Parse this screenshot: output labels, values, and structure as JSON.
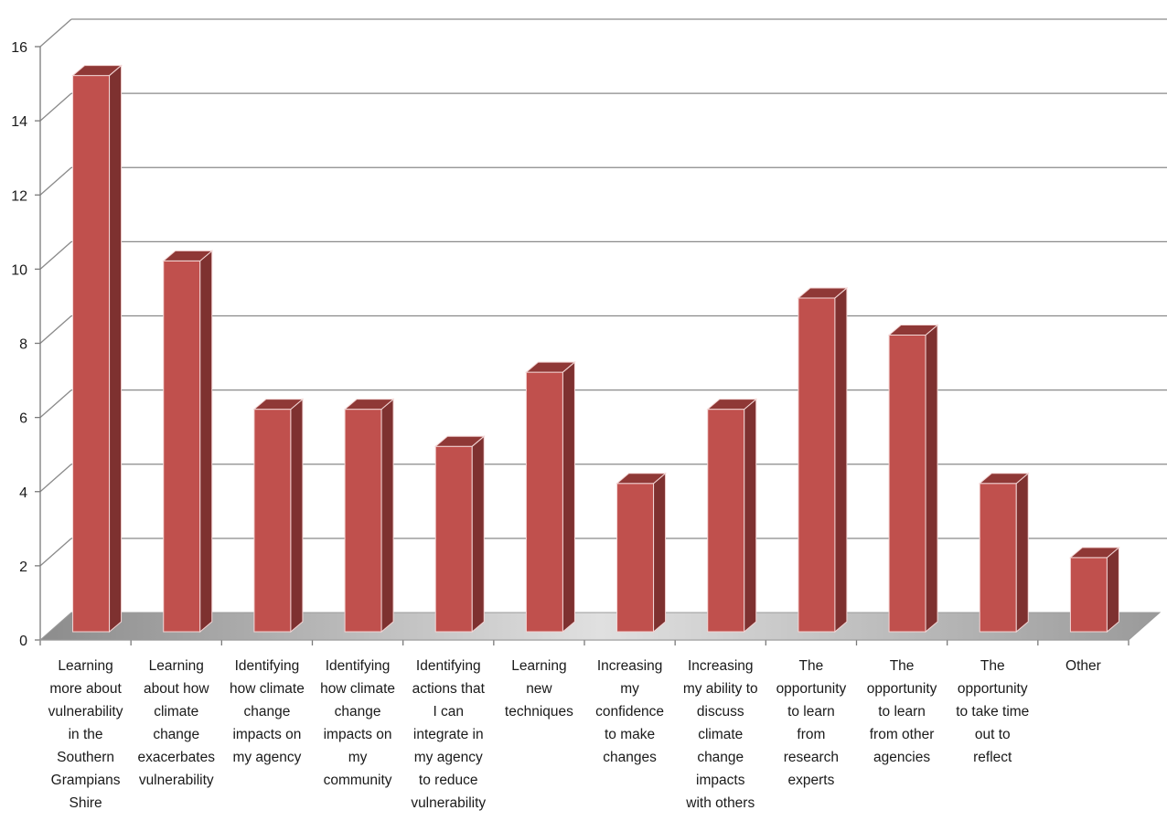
{
  "chart_data": {
    "type": "bar",
    "title": "",
    "xlabel": "",
    "ylabel": "",
    "ylim": [
      0,
      16
    ],
    "yticks": [
      0,
      2,
      4,
      6,
      8,
      10,
      12,
      14,
      16
    ],
    "grid": true,
    "style": "3d-column",
    "bar_color": "#C0504D",
    "categories": [
      "Learning more about vulnerability in the Southern Grampians Shire",
      "Learning about how climate change exacerbates vulnerability",
      "Identifying how climate change impacts on my agency",
      "Identifying how climate change impacts on my community",
      "Identifying actions that I can integrate in my agency to reduce vulnerability",
      "Learning new techniques",
      "Increasing my confidence to make changes",
      "Increasing my ability to discuss climate change impacts with others",
      "The opportunity to learn from research experts",
      "The opportunity to learn from other agencies",
      "The opportunity to take time out to reflect",
      "Other"
    ],
    "category_lines": [
      [
        "Learning",
        "more about",
        "vulnerability",
        "in the",
        "Southern",
        "Grampians",
        "Shire"
      ],
      [
        "Learning",
        "about how",
        "climate",
        "change",
        "exacerbates",
        "vulnerability"
      ],
      [
        "Identifying",
        "how climate",
        "change",
        "impacts on",
        "my agency"
      ],
      [
        "Identifying",
        "how climate",
        "change",
        "impacts on",
        "my",
        "community"
      ],
      [
        "Identifying",
        "actions that",
        "I can",
        "integrate in",
        "my agency",
        "to reduce",
        "vulnerability"
      ],
      [
        "Learning",
        "new",
        "techniques"
      ],
      [
        "Increasing",
        "my",
        "confidence",
        "to make",
        "changes"
      ],
      [
        "Increasing",
        "my ability to",
        "discuss",
        "climate",
        "change",
        "impacts",
        "with others"
      ],
      [
        "The",
        "opportunity",
        "to learn",
        "from",
        "research",
        "experts"
      ],
      [
        "The",
        "opportunity",
        "to learn",
        "from other",
        "agencies"
      ],
      [
        "The",
        "opportunity",
        "to take time",
        "out to",
        "reflect"
      ],
      [
        "Other"
      ]
    ],
    "values": [
      15,
      10,
      6,
      6,
      5,
      7,
      4,
      6,
      9,
      8,
      4,
      2
    ]
  }
}
